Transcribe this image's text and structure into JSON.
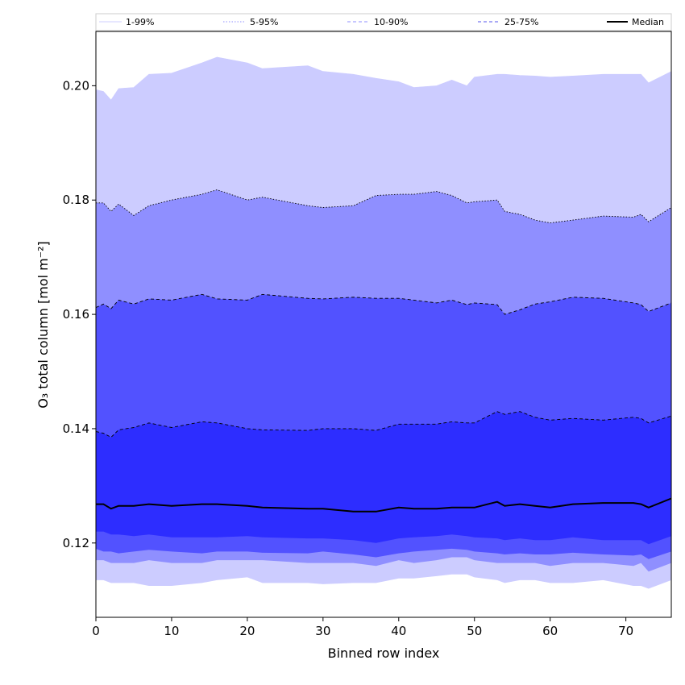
{
  "chart_data": {
    "type": "area",
    "title": "",
    "xlabel": "Binned row index",
    "ylabel": "O₃ total column [mol m⁻²]",
    "xlim": [
      0,
      76
    ],
    "ylim": [
      0.107,
      0.2095
    ],
    "x_ticks": [
      0,
      10,
      20,
      30,
      40,
      50,
      60,
      70
    ],
    "y_ticks": [
      0.12,
      0.14,
      0.16,
      0.18,
      0.2
    ],
    "y_tick_labels": [
      "0.12",
      "0.14",
      "0.16",
      "0.18",
      "0.20"
    ],
    "grid": false,
    "legend_position": "top, spanning full width",
    "x_knots": [
      0,
      1,
      2,
      3,
      5,
      7,
      10,
      14,
      16,
      20,
      22,
      28,
      30,
      34,
      37,
      40,
      42,
      45,
      47,
      49,
      50,
      53,
      54,
      56,
      58,
      60,
      63,
      67,
      71,
      72,
      73,
      76
    ],
    "bands": [
      {
        "name": "1-99%",
        "color": "#ccccff",
        "edge_color": "#ccccff",
        "edge_style": "solid",
        "lower": [
          0.1135,
          0.1135,
          0.113,
          0.113,
          0.113,
          0.1125,
          0.1125,
          0.113,
          0.1135,
          0.114,
          0.113,
          0.113,
          0.1128,
          0.113,
          0.113,
          0.1138,
          0.1138,
          0.1142,
          0.1145,
          0.1145,
          0.114,
          0.1135,
          0.113,
          0.1135,
          0.1135,
          0.113,
          0.113,
          0.1135,
          0.1125,
          0.1125,
          0.112,
          0.1135
        ],
        "upper": [
          0.1993,
          0.199,
          0.1975,
          0.1995,
          0.1997,
          0.202,
          0.2022,
          0.204,
          0.205,
          0.204,
          0.203,
          0.2035,
          0.2025,
          0.202,
          0.2013,
          0.2007,
          0.1997,
          0.2,
          0.201,
          0.2,
          0.2015,
          0.202,
          0.202,
          0.2018,
          0.2017,
          0.2015,
          0.2017,
          0.202,
          0.202,
          0.202,
          0.2005,
          0.2025
        ]
      },
      {
        "name": "5-95%",
        "color": "#8f8fff",
        "edge_color": "#000000",
        "edge_style": "dotted",
        "lower": [
          0.117,
          0.117,
          0.1165,
          0.1165,
          0.1165,
          0.117,
          0.1165,
          0.1165,
          0.117,
          0.117,
          0.117,
          0.1165,
          0.1165,
          0.1165,
          0.116,
          0.117,
          0.1165,
          0.117,
          0.1175,
          0.1175,
          0.117,
          0.1165,
          0.1165,
          0.1165,
          0.1165,
          0.116,
          0.1165,
          0.1165,
          0.116,
          0.1165,
          0.115,
          0.1165
        ],
        "upper": [
          0.1795,
          0.1795,
          0.178,
          0.1793,
          0.1773,
          0.179,
          0.18,
          0.181,
          0.1818,
          0.18,
          0.1805,
          0.179,
          0.1787,
          0.179,
          0.1808,
          0.181,
          0.181,
          0.1815,
          0.1808,
          0.1795,
          0.1797,
          0.18,
          0.178,
          0.1775,
          0.1765,
          0.176,
          0.1765,
          0.1772,
          0.177,
          0.1775,
          0.1762,
          0.1787
        ]
      },
      {
        "name": "10-90%",
        "color": "#5252ff",
        "edge_color": "#000000",
        "edge_style": "dashed",
        "lower": [
          0.119,
          0.1185,
          0.1185,
          0.1182,
          0.1185,
          0.1188,
          0.1185,
          0.1182,
          0.1185,
          0.1185,
          0.1183,
          0.1182,
          0.1185,
          0.118,
          0.1175,
          0.1182,
          0.1185,
          0.1188,
          0.119,
          0.1188,
          0.1185,
          0.1182,
          0.118,
          0.1182,
          0.118,
          0.118,
          0.1183,
          0.118,
          0.1178,
          0.118,
          0.1172,
          0.1185
        ],
        "upper": [
          0.1612,
          0.1618,
          0.161,
          0.1625,
          0.1618,
          0.1627,
          0.1625,
          0.1635,
          0.1627,
          0.1625,
          0.1635,
          0.1628,
          0.1627,
          0.163,
          0.1628,
          0.1628,
          0.1625,
          0.162,
          0.1625,
          0.1617,
          0.162,
          0.1617,
          0.16,
          0.1608,
          0.1618,
          0.1622,
          0.163,
          0.1628,
          0.162,
          0.1617,
          0.1605,
          0.162
        ]
      },
      {
        "name": "25-75%",
        "color": "#2d2dff",
        "edge_color": "#000000",
        "edge_style": "dashed",
        "lower": [
          0.122,
          0.122,
          0.1215,
          0.1215,
          0.1212,
          0.1215,
          0.121,
          0.121,
          0.121,
          0.1212,
          0.121,
          0.1208,
          0.1208,
          0.1205,
          0.12,
          0.1208,
          0.121,
          0.1212,
          0.1215,
          0.1212,
          0.121,
          0.1208,
          0.1205,
          0.1208,
          0.1205,
          0.1205,
          0.121,
          0.1205,
          0.1205,
          0.1205,
          0.1198,
          0.1212
        ],
        "upper": [
          0.1395,
          0.1392,
          0.1385,
          0.1398,
          0.1402,
          0.141,
          0.1402,
          0.1412,
          0.141,
          0.14,
          0.1398,
          0.1397,
          0.14,
          0.14,
          0.1397,
          0.1408,
          0.1408,
          0.1408,
          0.1412,
          0.141,
          0.141,
          0.143,
          0.1425,
          0.143,
          0.142,
          0.1415,
          0.1418,
          0.1415,
          0.142,
          0.1418,
          0.141,
          0.1422
        ]
      }
    ],
    "series": [
      {
        "name": "Median",
        "color": "#000000",
        "values": [
          0.1268,
          0.1268,
          0.126,
          0.1265,
          0.1265,
          0.1268,
          0.1265,
          0.1268,
          0.1268,
          0.1265,
          0.1262,
          0.126,
          0.126,
          0.1255,
          0.1255,
          0.1262,
          0.126,
          0.126,
          0.1262,
          0.1262,
          0.1262,
          0.1272,
          0.1265,
          0.1268,
          0.1265,
          0.1262,
          0.1268,
          0.127,
          0.127,
          0.1268,
          0.1262,
          0.1278
        ]
      }
    ],
    "legend": [
      {
        "label": "1-99%",
        "style": "solid",
        "color": "#cfcfff"
      },
      {
        "label": "5-95%",
        "style": "dotted",
        "color": "#8f8fff"
      },
      {
        "label": "10-90%",
        "style": "dashed",
        "color": "#8f8fff"
      },
      {
        "label": "25-75%",
        "style": "dashed",
        "color": "#5555ee"
      },
      {
        "label": "Median",
        "style": "solid",
        "color": "#000000"
      }
    ]
  }
}
